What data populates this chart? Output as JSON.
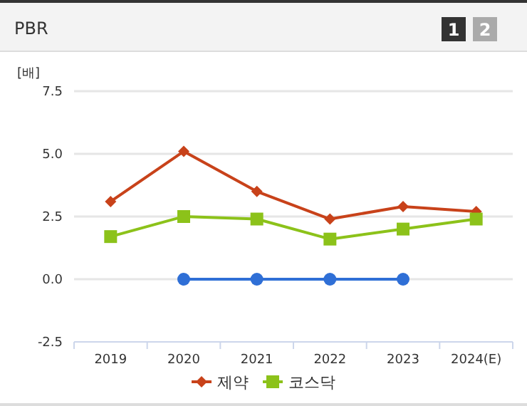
{
  "chart_data": {
    "type": "line",
    "title": "PBR",
    "ylabel": "[배]",
    "annotations": [
      "1",
      "2"
    ],
    "categories": [
      "2019",
      "2020",
      "2021",
      "2022",
      "2023",
      "2024(E)"
    ],
    "series": [
      {
        "color": "#2f6fd6",
        "marker": "circle",
        "values": [
          null,
          0.0,
          0.0,
          0.0,
          0.0,
          null
        ]
      },
      {
        "name": "제약",
        "color": "#c8421a",
        "marker": "diamond",
        "values": [
          3.1,
          5.1,
          3.5,
          2.4,
          2.9,
          2.7
        ]
      },
      {
        "name": "코스닥",
        "color": "#8cc21a",
        "marker": "square",
        "values": [
          1.7,
          2.5,
          2.4,
          1.6,
          2.0,
          2.4
        ]
      }
    ],
    "ylim": [
      -2.5,
      7.5
    ],
    "yticks": [
      {
        "value": -2.5,
        "label": "-2.5"
      },
      {
        "value": 0,
        "label": "0.0"
      },
      {
        "value": 2.5,
        "label": "2.5"
      },
      {
        "value": 5,
        "label": "5.0"
      },
      {
        "value": 7.5,
        "label": "7.5"
      }
    ],
    "grid": "y",
    "legend": "bottom"
  }
}
